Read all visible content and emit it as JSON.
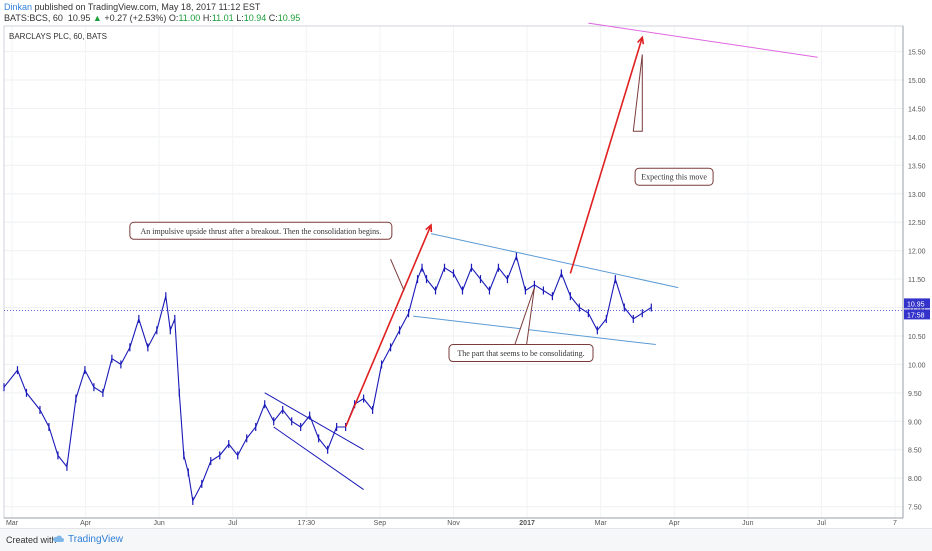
{
  "header": {
    "author": "Dinkan",
    "published": " published on TradingView.com, May 18, 2017 11:12 EST",
    "symbol": "BATS:BCS, 60",
    "last": "10.95",
    "change_arrow": "▲",
    "change": "+0.27 (+2.53%)",
    "o_label": "O:",
    "o_value": "11.00",
    "h_label": "H:",
    "h_value": "11.01",
    "l_label": "L:",
    "l_value": "10.94",
    "c_label": "C:",
    "c_value": "10.95"
  },
  "footer": {
    "created": "Created with",
    "brand": "TradingView",
    "logo_icon": "cloud-icon"
  },
  "colors": {
    "candles": "#1a1ab8",
    "red_arrow": "#e02020",
    "channel": "#5b9bd5",
    "magenta": "#e066e0",
    "price_line": "#3333cc",
    "callout_border": "#7a3b3b"
  },
  "chart_data": {
    "type": "line",
    "title": "BARCLAYS PLC, 60, BATS",
    "xlabel": "",
    "ylabel": "",
    "ylim": [
      7.3,
      15.95
    ],
    "y_ticks": [
      "7.50",
      "8.00",
      "8.50",
      "9.00",
      "9.50",
      "10.00",
      "10.50",
      "11.00",
      "11.50",
      "12.00",
      "12.50",
      "13.00",
      "13.50",
      "14.00",
      "14.50",
      "15.00",
      "15.50"
    ],
    "x_ticks": [
      "Mar",
      "Apr",
      "Jun",
      "Jul",
      "17:30",
      "Sep",
      "Nov",
      "2017",
      "Mar",
      "Apr",
      "Jun",
      "Jul",
      "7"
    ],
    "x_range": [
      0,
      100
    ],
    "current_price": 10.95,
    "price_tags": [
      "10.95",
      "17:58"
    ],
    "series": [
      {
        "values": [
          [
            0,
            9.6
          ],
          [
            1.5,
            9.9
          ],
          [
            2.5,
            9.5
          ],
          [
            4,
            9.2
          ],
          [
            5,
            8.9
          ],
          [
            6,
            8.4
          ],
          [
            7,
            8.2
          ],
          [
            8,
            9.4
          ],
          [
            9,
            9.9
          ],
          [
            10,
            9.6
          ],
          [
            11,
            9.5
          ],
          [
            12,
            10.1
          ],
          [
            13,
            10.0
          ],
          [
            14,
            10.3
          ],
          [
            15,
            10.8
          ],
          [
            16,
            10.3
          ],
          [
            17,
            10.6
          ],
          [
            18,
            11.2
          ],
          [
            18.5,
            10.6
          ],
          [
            19,
            10.8
          ],
          [
            19.5,
            9.5
          ],
          [
            20,
            8.4
          ],
          [
            20.5,
            8.1
          ],
          [
            21,
            7.6
          ],
          [
            22,
            7.9
          ],
          [
            23,
            8.3
          ],
          [
            24,
            8.4
          ],
          [
            25,
            8.6
          ],
          [
            26,
            8.4
          ],
          [
            27,
            8.7
          ],
          [
            28,
            8.9
          ],
          [
            29,
            9.3
          ],
          [
            30,
            9.0
          ],
          [
            31,
            9.2
          ],
          [
            32,
            9.0
          ],
          [
            33,
            8.9
          ],
          [
            34,
            9.1
          ],
          [
            35,
            8.7
          ],
          [
            36,
            8.5
          ],
          [
            37,
            8.9
          ],
          [
            38,
            8.9
          ],
          [
            39,
            9.3
          ],
          [
            40,
            9.4
          ],
          [
            41,
            9.2
          ],
          [
            42,
            10.0
          ],
          [
            43,
            10.3
          ],
          [
            44,
            10.6
          ],
          [
            45,
            10.9
          ],
          [
            46,
            11.5
          ],
          [
            46.5,
            11.7
          ],
          [
            47,
            11.5
          ],
          [
            48,
            11.3
          ],
          [
            49,
            11.7
          ],
          [
            50,
            11.6
          ],
          [
            51,
            11.3
          ],
          [
            52,
            11.7
          ],
          [
            53,
            11.5
          ],
          [
            54,
            11.3
          ],
          [
            55,
            11.7
          ],
          [
            56,
            11.5
          ],
          [
            57,
            11.9
          ],
          [
            58,
            11.3
          ],
          [
            59,
            11.4
          ],
          [
            60,
            11.3
          ],
          [
            61,
            11.2
          ],
          [
            62,
            11.6
          ],
          [
            63,
            11.2
          ],
          [
            64,
            11.0
          ],
          [
            65,
            10.9
          ],
          [
            66,
            10.6
          ],
          [
            67,
            10.8
          ],
          [
            68,
            11.5
          ],
          [
            69,
            11.0
          ],
          [
            70,
            10.8
          ],
          [
            71,
            10.9
          ],
          [
            72,
            11.0
          ]
        ]
      }
    ],
    "annotations": [
      {
        "text": "An impulsive upside thrust after a breakout. Then the consolidation begins."
      },
      {
        "text": "Expecting this move"
      },
      {
        "text": "The part that seems to be consolidating."
      }
    ],
    "lines": {
      "down_channel": [
        [
          [
            29,
            9.5
          ],
          [
            40,
            8.5
          ]
        ],
        [
          [
            30,
            8.9
          ],
          [
            40,
            7.8
          ]
        ]
      ],
      "up_arrow_1": [
        [
          38,
          8.9
        ],
        [
          47.5,
          12.45
        ]
      ],
      "up_arrow_2": [
        [
          63,
          11.6
        ],
        [
          71,
          15.75
        ]
      ],
      "consol_upper": [
        [
          47.5,
          12.3
        ],
        [
          75,
          11.35
        ]
      ],
      "consol_lower": [
        [
          45.5,
          10.85
        ],
        [
          72.5,
          10.35
        ]
      ],
      "magenta": [
        [
          65,
          16.0
        ],
        [
          90.5,
          15.4
        ]
      ],
      "callout1_pointer": [
        [
          43,
          11.85
        ],
        [
          44.5,
          11.3
        ]
      ],
      "callout2_pointers": [
        [
          71,
          15.45
        ],
        [
          70,
          14.1
        ],
        [
          71,
          14.1
        ]
      ],
      "callout3_pointers": [
        [
          59,
          11.35
        ],
        [
          56.5,
          10.2
        ],
        [
          58,
          10.2
        ]
      ]
    },
    "grid": true,
    "legend": "none"
  }
}
